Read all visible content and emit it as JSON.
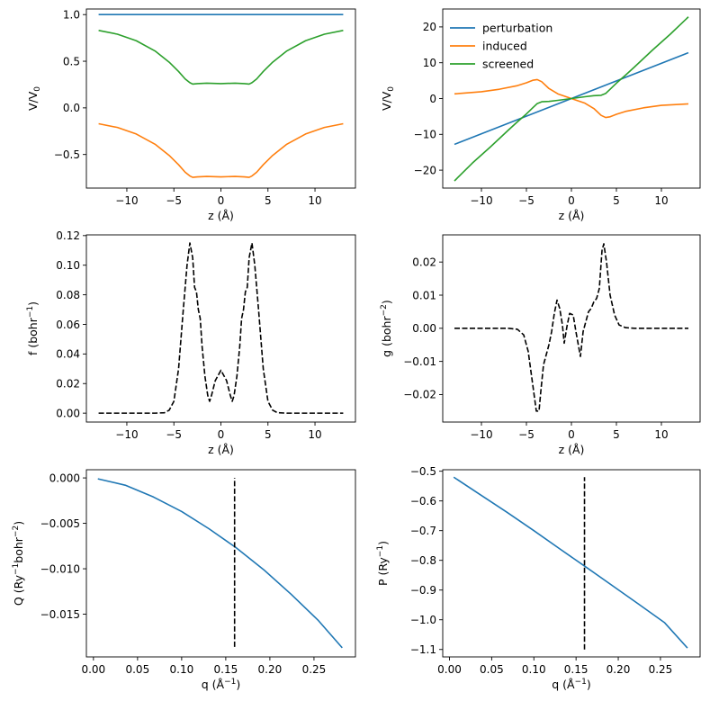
{
  "figure": {
    "panel_count": 6
  },
  "chart_data": [
    {
      "id": "p1",
      "type": "line",
      "title": "",
      "xlabel": "z (Å)",
      "ylabel": "V/V₀",
      "xlim": [
        -14.3,
        14.3
      ],
      "ylim": [
        -0.86,
        1.06
      ],
      "xticks": [
        -10,
        -5,
        0,
        5,
        10
      ],
      "xtick_labels": [
        "−10",
        "−5",
        "0",
        "5",
        "10"
      ],
      "yticks": [
        -0.5,
        0.0,
        0.5,
        1.0
      ],
      "ytick_labels": [
        "−0.5",
        "0.0",
        "0.5",
        "1.0"
      ],
      "legend": null,
      "series": [
        {
          "name": "perturbation",
          "color": "#1f77b4",
          "dash": "solid",
          "x": [
            -13,
            13
          ],
          "y": [
            1.0,
            1.0
          ]
        },
        {
          "name": "screened",
          "color": "#2ca02c",
          "dash": "solid",
          "x": [
            -13,
            -11,
            -9,
            -7,
            -5.5,
            -4.5,
            -3.8,
            -3.3,
            -3,
            -2.5,
            -1.5,
            0,
            1.5,
            2.5,
            3,
            3.3,
            3.8,
            4.5,
            5.5,
            7,
            9,
            11,
            13
          ],
          "y": [
            0.83,
            0.79,
            0.72,
            0.61,
            0.49,
            0.39,
            0.31,
            0.27,
            0.255,
            0.26,
            0.265,
            0.26,
            0.265,
            0.26,
            0.255,
            0.27,
            0.31,
            0.39,
            0.49,
            0.61,
            0.72,
            0.79,
            0.83
          ]
        },
        {
          "name": "induced",
          "color": "#ff7f0e",
          "dash": "solid",
          "x": [
            -13,
            -11,
            -9,
            -7,
            -5.5,
            -4.5,
            -3.8,
            -3.3,
            -3,
            -2.5,
            -1.5,
            0,
            1.5,
            2.5,
            3,
            3.3,
            3.8,
            4.5,
            5.5,
            7,
            9,
            11,
            13
          ],
          "y": [
            -0.17,
            -0.21,
            -0.28,
            -0.39,
            -0.51,
            -0.61,
            -0.69,
            -0.73,
            -0.745,
            -0.74,
            -0.735,
            -0.74,
            -0.735,
            -0.74,
            -0.745,
            -0.73,
            -0.69,
            -0.61,
            -0.51,
            -0.39,
            -0.28,
            -0.21,
            -0.17
          ]
        }
      ]
    },
    {
      "id": "p2",
      "type": "line",
      "title": "",
      "xlabel": "z (Å)",
      "ylabel": "V/V₀",
      "xlim": [
        -14.3,
        14.3
      ],
      "ylim": [
        -25,
        25
      ],
      "xticks": [
        -10,
        -5,
        0,
        5,
        10
      ],
      "xtick_labels": [
        "−10",
        "−5",
        "0",
        "5",
        "10"
      ],
      "yticks": [
        -20,
        -10,
        0,
        10,
        20
      ],
      "ytick_labels": [
        "−20",
        "−10",
        "0",
        "10",
        "20"
      ],
      "legend": {
        "position": "top-left",
        "entries": [
          "perturbation",
          "induced",
          "screened"
        ]
      },
      "series": [
        {
          "name": "perturbation",
          "color": "#1f77b4",
          "dash": "solid",
          "x": [
            -13,
            13
          ],
          "y": [
            -12.8,
            12.8
          ]
        },
        {
          "name": "induced",
          "color": "#ff7f0e",
          "dash": "solid",
          "x": [
            -13,
            -10,
            -8,
            -6,
            -5,
            -4.3,
            -3.8,
            -3.3,
            -2.5,
            -1.5,
            0,
            1.5,
            2.5,
            3.3,
            3.8,
            4.3,
            5,
            6,
            8,
            10,
            13
          ],
          "y": [
            1.3,
            1.9,
            2.6,
            3.6,
            4.4,
            5.1,
            5.3,
            4.7,
            2.8,
            1.3,
            0,
            -1.3,
            -2.8,
            -4.7,
            -5.3,
            -5.1,
            -4.4,
            -3.6,
            -2.6,
            -1.9,
            -1.5
          ]
        },
        {
          "name": "screened",
          "color": "#2ca02c",
          "dash": "solid",
          "x": [
            -13,
            -11,
            -9,
            -7,
            -6,
            -5,
            -4.3,
            -3.8,
            -3.3,
            -2.5,
            -1.5,
            0,
            1.5,
            2.5,
            3.3,
            3.8,
            4.3,
            5,
            6,
            7,
            9,
            11,
            13
          ],
          "y": [
            -23,
            -18,
            -13.5,
            -8.8,
            -6.5,
            -4.3,
            -2.6,
            -1.4,
            -0.9,
            -0.8,
            -0.5,
            0,
            0.5,
            0.8,
            0.9,
            1.4,
            2.6,
            4.3,
            6.5,
            8.8,
            13.5,
            18,
            22.8
          ]
        }
      ]
    },
    {
      "id": "p3",
      "type": "line",
      "title": "",
      "xlabel": "z (Å)",
      "ylabel": "f (bohr⁻¹)",
      "xlim": [
        -14.3,
        14.3
      ],
      "ylim": [
        -0.006,
        0.1205
      ],
      "xticks": [
        -10,
        -5,
        0,
        5,
        10
      ],
      "xtick_labels": [
        "−10",
        "−5",
        "0",
        "5",
        "10"
      ],
      "yticks": [
        0.0,
        0.02,
        0.04,
        0.06,
        0.08,
        0.1,
        0.12
      ],
      "ytick_labels": [
        "0.00",
        "0.02",
        "0.04",
        "0.06",
        "0.08",
        "0.10",
        "0.12"
      ],
      "legend": null,
      "series": [
        {
          "name": "f",
          "color": "#000000",
          "dash": "dashed",
          "x": [
            -13,
            -7,
            -6,
            -5.5,
            -5,
            -4.5,
            -4,
            -3.6,
            -3.3,
            -3,
            -2.8,
            -2.6,
            -2.4,
            -2.2,
            -2,
            -1.7,
            -1.4,
            -1.2,
            -1,
            -0.6,
            0,
            0.6,
            1,
            1.2,
            1.4,
            1.7,
            2,
            2.2,
            2.4,
            2.6,
            2.8,
            3,
            3.3,
            3.6,
            4,
            4.5,
            5,
            5.5,
            6,
            7,
            13
          ],
          "y": [
            0,
            0,
            0.0003,
            0.002,
            0.008,
            0.03,
            0.07,
            0.1,
            0.115,
            0.105,
            0.085,
            0.082,
            0.07,
            0.064,
            0.045,
            0.025,
            0.012,
            0.008,
            0.012,
            0.022,
            0.029,
            0.022,
            0.012,
            0.008,
            0.012,
            0.025,
            0.045,
            0.064,
            0.07,
            0.082,
            0.085,
            0.105,
            0.115,
            0.1,
            0.07,
            0.03,
            0.008,
            0.002,
            0.0003,
            0,
            0
          ]
        }
      ]
    },
    {
      "id": "p4",
      "type": "line",
      "title": "",
      "xlabel": "z (Å)",
      "ylabel": "g (bohr⁻²)",
      "xlim": [
        -14.3,
        14.3
      ],
      "ylim": [
        -0.0283,
        0.0282
      ],
      "xticks": [
        -10,
        -5,
        0,
        5,
        10
      ],
      "xtick_labels": [
        "−10",
        "−5",
        "0",
        "5",
        "10"
      ],
      "yticks": [
        -0.02,
        -0.01,
        0.0,
        0.01,
        0.02
      ],
      "ytick_labels": [
        "−0.02",
        "−0.01",
        "0.00",
        "0.01",
        "0.02"
      ],
      "legend": null,
      "series": [
        {
          "name": "g",
          "color": "#000000",
          "dash": "dashed",
          "x": [
            -13,
            -7,
            -6,
            -5.3,
            -4.8,
            -4.3,
            -3.9,
            -3.6,
            -3.4,
            -3.1,
            -2.8,
            -2.5,
            -2.2,
            -1.9,
            -1.6,
            -1.3,
            -1,
            -0.8,
            -0.5,
            -0.2,
            0.2,
            0.5,
            0.8,
            1,
            1.3,
            1.6,
            1.9,
            2.2,
            2.5,
            2.8,
            3.1,
            3.4,
            3.6,
            3.9,
            4.3,
            4.8,
            5.3,
            6,
            7,
            13
          ],
          "y": [
            0,
            0,
            -0.0003,
            -0.002,
            -0.007,
            -0.017,
            -0.025,
            -0.025,
            -0.019,
            -0.011,
            -0.008,
            -0.005,
            -0.001,
            0.0045,
            0.0085,
            0.006,
            0.001,
            -0.0045,
            0.0005,
            0.0045,
            0.004,
            -0.001,
            -0.0055,
            -0.0085,
            -0.001,
            0.002,
            0.005,
            0.006,
            0.008,
            0.009,
            0.012,
            0.0235,
            0.0255,
            0.02,
            0.01,
            0.004,
            0.001,
            0.0002,
            0,
            0
          ]
        }
      ]
    },
    {
      "id": "p5",
      "type": "line",
      "title": "",
      "xlabel": "q (Å⁻¹)",
      "ylabel": "Q (Ry⁻¹bohr⁻²)",
      "xlim": [
        -0.008,
        0.297
      ],
      "ylim": [
        -0.0197,
        0.0009
      ],
      "xticks": [
        0.0,
        0.05,
        0.1,
        0.15,
        0.2,
        0.25
      ],
      "xtick_labels": [
        "0.00",
        "0.05",
        "0.10",
        "0.15",
        "0.20",
        "0.25"
      ],
      "yticks": [
        0.0,
        -0.005,
        -0.01,
        -0.015
      ],
      "ytick_labels": [
        "0.000",
        "−0.005",
        "−0.010",
        "−0.015"
      ],
      "legend": null,
      "vline": {
        "x": 0.16,
        "y0": -0.0186,
        "y1": 0.0,
        "color": "#000000",
        "dash": "dashed"
      },
      "series": [
        {
          "name": "Q",
          "color": "#1f77b4",
          "dash": "solid",
          "x": [
            0.005,
            0.036,
            0.068,
            0.1,
            0.131,
            0.162,
            0.193,
            0.224,
            0.255,
            0.282
          ],
          "y": [
            -0.0001,
            -0.0008,
            -0.0021,
            -0.0037,
            -0.0056,
            -0.0077,
            -0.0101,
            -0.0128,
            -0.0157,
            -0.0187
          ]
        }
      ]
    },
    {
      "id": "p6",
      "type": "line",
      "title": "",
      "xlabel": "q (Å⁻¹)",
      "ylabel": "P (Ry⁻¹)",
      "xlim": [
        -0.008,
        0.297
      ],
      "ylim": [
        -1.125,
        -0.495
      ],
      "xticks": [
        0.0,
        0.05,
        0.1,
        0.15,
        0.2,
        0.25
      ],
      "xtick_labels": [
        "0.00",
        "0.05",
        "0.10",
        "0.15",
        "0.20",
        "0.25"
      ],
      "yticks": [
        -0.5,
        -0.6,
        -0.7,
        -0.8,
        -0.9,
        -1.0,
        -1.1
      ],
      "ytick_labels": [
        "−0.5",
        "−0.6",
        "−0.7",
        "−0.8",
        "−0.9",
        "−1.0",
        "−1.1"
      ],
      "legend": null,
      "vline": {
        "x": 0.16,
        "y0": -1.1,
        "y1": -0.52,
        "color": "#000000",
        "dash": "dashed"
      },
      "series": [
        {
          "name": "P",
          "color": "#1f77b4",
          "dash": "solid",
          "x": [
            0.005,
            0.036,
            0.068,
            0.1,
            0.131,
            0.162,
            0.193,
            0.224,
            0.255,
            0.282
          ],
          "y": [
            -0.52,
            -0.578,
            -0.638,
            -0.7,
            -0.762,
            -0.823,
            -0.885,
            -0.947,
            -1.01,
            -1.095
          ]
        }
      ]
    }
  ]
}
